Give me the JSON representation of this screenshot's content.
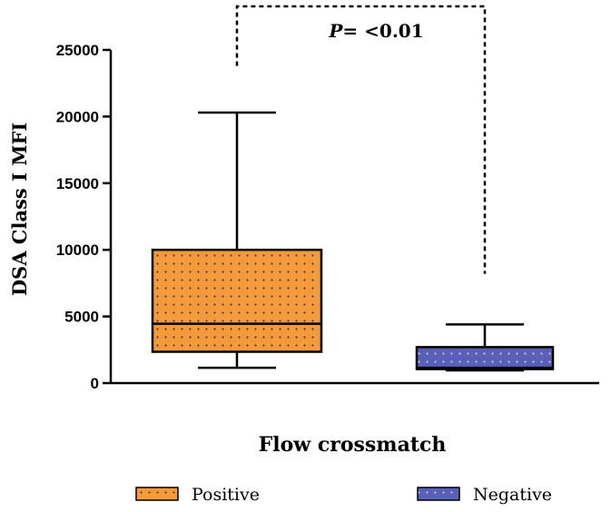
{
  "chart_data": {
    "type": "box",
    "title": "",
    "xlabel": "Flow crossmatch",
    "ylabel": "DSA Class I MFI",
    "ylim": [
      0,
      25000
    ],
    "yticks": [
      0,
      5000,
      10000,
      15000,
      20000,
      25000
    ],
    "yticklabels": [
      "0",
      "5000",
      "10000",
      "15000",
      "20000",
      "25000"
    ],
    "grid": false,
    "legend_position": "bottom",
    "series": [
      {
        "name": "Positive",
        "color": "#F39A3D",
        "dot_color": "#3a2a14",
        "min": 1150,
        "q1": 2350,
        "median": 4450,
        "q3": 10000,
        "max": 20300
      },
      {
        "name": "Negative",
        "color": "#5A5FB8",
        "dot_color": "#d8dbf3",
        "min": 950,
        "q1": 1050,
        "median": 1150,
        "q3": 2700,
        "max": 4400
      }
    ],
    "annotation": {
      "p_label": "P",
      "p_text": "= <0.01",
      "left_y": 23800,
      "right_y": 8200
    }
  }
}
